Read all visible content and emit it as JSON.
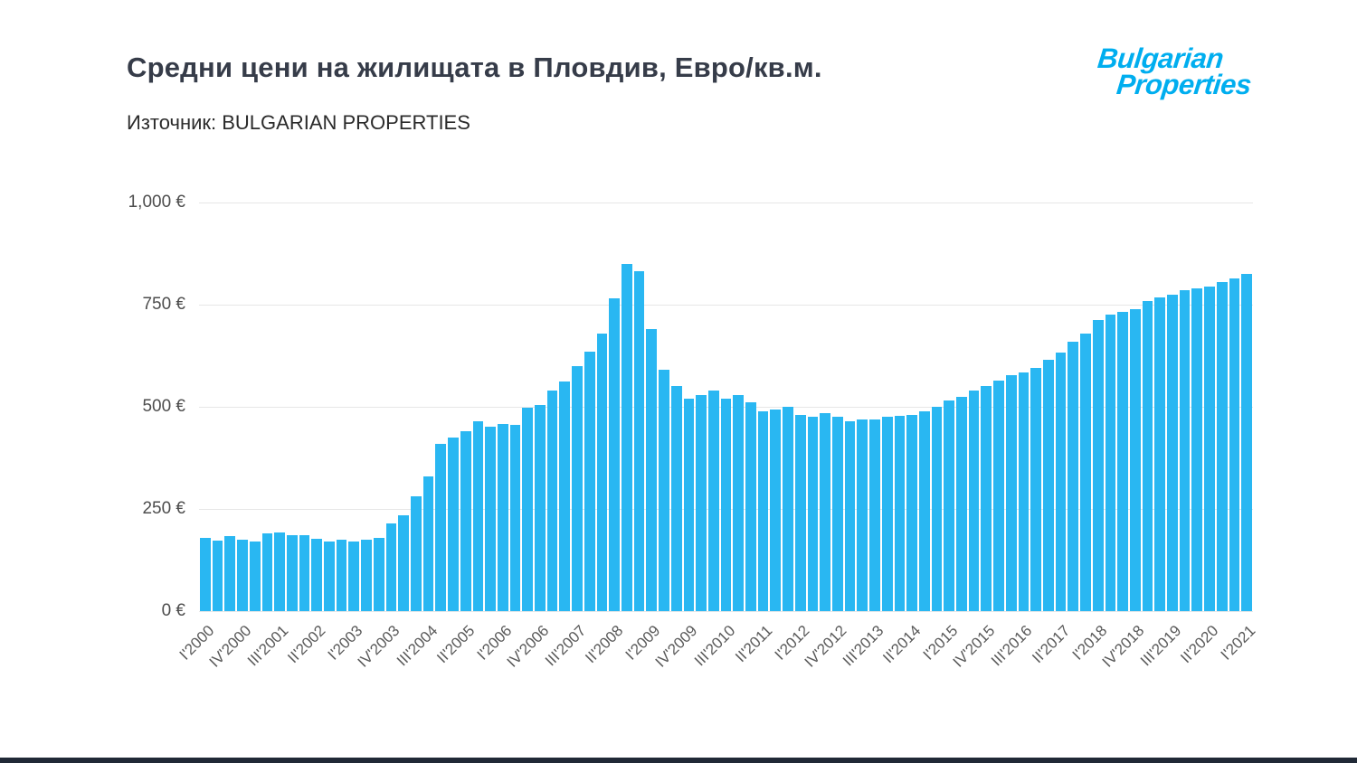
{
  "page": {
    "title": "Средни цени на жилищата в Пловдив, Евро/кв.м.",
    "source": "Източник: BULGARIAN PROPERTIES",
    "logo": {
      "line1": "Bulgarian",
      "line2": "Properties",
      "color": "#00aeef"
    }
  },
  "chart_data": {
    "type": "bar",
    "title": "Средни цени на жилищата в Пловдив, Евро/кв.м.",
    "subtitle": "Източник: BULGARIAN PROPERTIES",
    "ylabel": "Евро/кв.м.",
    "ylim": [
      0,
      1000
    ],
    "y_ticks": [
      "0 €",
      "250 €",
      "500 €",
      "750 €",
      "1,000 €"
    ],
    "y_tick_values": [
      0,
      250,
      500,
      750,
      1000
    ],
    "bar_color": "#29b7f2",
    "grid": "horizontal",
    "legend": "none",
    "x_tick_every": 3,
    "x_tick_labels": [
      "I'2000",
      "IV'2000",
      "III'2001",
      "II'2002",
      "I'2003",
      "IV'2003",
      "III'2004",
      "II'2005",
      "I'2006",
      "IV'2006",
      "III'2007",
      "II'2008",
      "I'2009",
      "IV'2009",
      "III'2010",
      "II'2011",
      "I'2012",
      "IV'2012",
      "III'2013",
      "II'2014",
      "I'2015",
      "IV'2015",
      "III'2016",
      "II'2017",
      "I'2018",
      "IV'2018",
      "III'2019",
      "II'2020",
      "I'2021"
    ],
    "categories": [
      "I'2000",
      "II'2000",
      "III'2000",
      "IV'2000",
      "I'2001",
      "II'2001",
      "III'2001",
      "IV'2001",
      "I'2002",
      "II'2002",
      "III'2002",
      "IV'2002",
      "I'2003",
      "II'2003",
      "III'2003",
      "IV'2003",
      "I'2004",
      "II'2004",
      "III'2004",
      "IV'2004",
      "I'2005",
      "II'2005",
      "III'2005",
      "IV'2005",
      "I'2006",
      "II'2006",
      "III'2006",
      "IV'2006",
      "I'2007",
      "II'2007",
      "III'2007",
      "IV'2007",
      "I'2008",
      "II'2008",
      "III'2008",
      "IV'2008",
      "I'2009",
      "II'2009",
      "III'2009",
      "IV'2009",
      "I'2010",
      "II'2010",
      "III'2010",
      "IV'2010",
      "I'2011",
      "II'2011",
      "III'2011",
      "IV'2011",
      "I'2012",
      "II'2012",
      "III'2012",
      "IV'2012",
      "I'2013",
      "II'2013",
      "III'2013",
      "IV'2013",
      "I'2014",
      "II'2014",
      "III'2014",
      "IV'2014",
      "I'2015",
      "II'2015",
      "III'2015",
      "IV'2015",
      "I'2016",
      "II'2016",
      "III'2016",
      "IV'2016",
      "I'2017",
      "II'2017",
      "III'2017",
      "IV'2017",
      "I'2018",
      "II'2018",
      "III'2018",
      "IV'2018",
      "I'2019",
      "II'2019",
      "III'2019",
      "IV'2019",
      "I'2020",
      "II'2020",
      "III'2020",
      "IV'2020",
      "I'2021"
    ],
    "values": [
      180,
      173,
      184,
      175,
      170,
      190,
      193,
      186,
      185,
      178,
      170,
      174,
      170,
      174,
      180,
      215,
      235,
      280,
      330,
      410,
      425,
      440,
      465,
      452,
      458,
      455,
      498,
      505,
      540,
      562,
      600,
      635,
      680,
      765,
      850,
      832,
      690,
      590,
      550,
      520,
      528,
      540,
      520,
      528,
      510,
      490,
      494,
      500,
      480,
      475,
      484,
      475,
      465,
      470,
      470,
      475,
      478,
      480,
      490,
      500,
      515,
      525,
      540,
      550,
      565,
      578,
      585,
      595,
      615,
      632,
      660,
      680,
      713,
      725,
      733,
      740,
      758,
      768,
      775,
      785,
      790,
      795,
      805,
      815,
      825
    ]
  }
}
